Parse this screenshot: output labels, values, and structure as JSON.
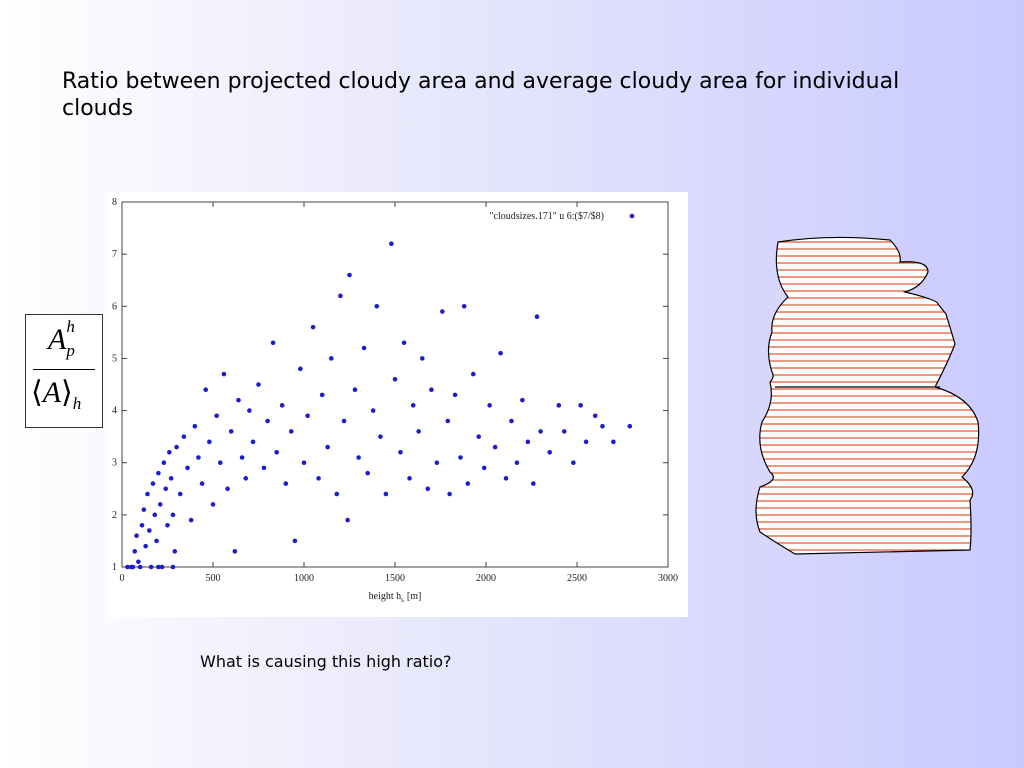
{
  "slide": {
    "title": "Ratio between projected cloudy area and average cloudy area for individual clouds",
    "question": "What is causing this high ratio?",
    "formula": {
      "numerator": {
        "base": "A",
        "sup": "h",
        "sub": "p"
      },
      "denominator": {
        "open": "⟨",
        "base": "A",
        "close": "⟩",
        "sub": "h"
      }
    }
  },
  "chart_data": {
    "type": "scatter",
    "xlabel": {
      "text": "height h",
      "sub": "s",
      "unit": "[m]"
    },
    "xlim": [
      0,
      3000
    ],
    "ylim": [
      1,
      8
    ],
    "xticks": [
      0,
      500,
      1000,
      1500,
      2000,
      2500,
      3000
    ],
    "yticks": [
      1,
      2,
      3,
      4,
      5,
      6,
      7,
      8
    ],
    "legend": "upper right",
    "series": [
      {
        "name": "\"cloudsizes.171\" u 6:($7/$8)",
        "color": "#1c1cd0",
        "x": [
          30,
          50,
          60,
          70,
          80,
          90,
          100,
          110,
          120,
          130,
          140,
          150,
          160,
          170,
          180,
          190,
          200,
          200,
          210,
          220,
          230,
          240,
          250,
          260,
          270,
          280,
          280,
          290,
          300,
          320,
          340,
          360,
          380,
          400,
          420,
          440,
          460,
          480,
          500,
          520,
          540,
          560,
          580,
          600,
          620,
          640,
          660,
          680,
          700,
          720,
          750,
          780,
          800,
          830,
          850,
          880,
          900,
          930,
          950,
          980,
          1000,
          1020,
          1050,
          1080,
          1100,
          1130,
          1150,
          1180,
          1200,
          1220,
          1240,
          1250,
          1280,
          1300,
          1330,
          1350,
          1380,
          1400,
          1420,
          1450,
          1480,
          1500,
          1530,
          1550,
          1580,
          1600,
          1630,
          1650,
          1680,
          1700,
          1730,
          1760,
          1790,
          1800,
          1830,
          1860,
          1880,
          1900,
          1930,
          1960,
          1990,
          2020,
          2050,
          2080,
          2110,
          2140,
          2170,
          2200,
          2230,
          2260,
          2280,
          2300,
          2350,
          2400,
          2430,
          2480,
          2520,
          2550,
          2600,
          2640,
          2700,
          2790
        ],
        "y": [
          1.0,
          1.0,
          1.0,
          1.3,
          1.6,
          1.1,
          1.0,
          1.8,
          2.1,
          1.4,
          2.4,
          1.7,
          1.0,
          2.6,
          2.0,
          1.5,
          2.8,
          1.0,
          2.2,
          1.0,
          3.0,
          2.5,
          1.8,
          3.2,
          2.7,
          2.0,
          1.0,
          1.3,
          3.3,
          2.4,
          3.5,
          2.9,
          1.9,
          3.7,
          3.1,
          2.6,
          4.4,
          3.4,
          2.2,
          3.9,
          3.0,
          4.7,
          2.5,
          3.6,
          1.3,
          4.2,
          3.1,
          2.7,
          4.0,
          3.4,
          4.5,
          2.9,
          3.8,
          5.3,
          3.2,
          4.1,
          2.6,
          3.6,
          1.5,
          4.8,
          3.0,
          3.9,
          5.6,
          2.7,
          4.3,
          3.3,
          5.0,
          2.4,
          6.2,
          3.8,
          1.9,
          6.6,
          4.4,
          3.1,
          5.2,
          2.8,
          4.0,
          6.0,
          3.5,
          2.4,
          7.2,
          4.6,
          3.2,
          5.3,
          2.7,
          4.1,
          3.6,
          5.0,
          2.5,
          4.4,
          3.0,
          5.9,
          3.8,
          2.4,
          4.3,
          3.1,
          6.0,
          2.6,
          4.7,
          3.5,
          2.9,
          4.1,
          3.3,
          5.1,
          2.7,
          3.8,
          3.0,
          4.2,
          3.4,
          2.6,
          5.8,
          3.6,
          3.2,
          4.1,
          3.6,
          3.0,
          4.1,
          3.4,
          3.9,
          3.7,
          3.4,
          3.7
        ]
      }
    ]
  }
}
